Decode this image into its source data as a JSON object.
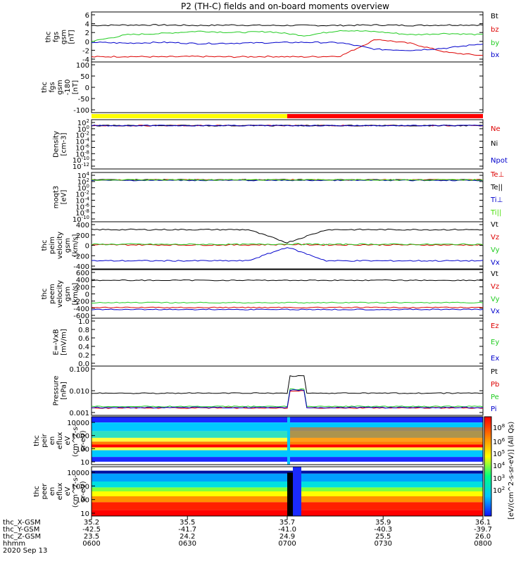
{
  "title": "P2 (TH-C) fields and on-board moments overview",
  "colors": {
    "black": "#000000",
    "red": "#dd0000",
    "green": "#22cc22",
    "blue": "#0000cc",
    "lime": "#44dd00",
    "yellow": "#ffff00"
  },
  "chart_data": [
    {
      "type": "line",
      "panel": "fgs",
      "ylabel": [
        "thc",
        "fgs",
        "gsm",
        "[nT]"
      ],
      "ylim": [
        -4,
        6
      ],
      "yticks": [
        "6",
        "4",
        "2",
        "0",
        "-2",
        "-4"
      ],
      "x": [
        0,
        0.1,
        0.2,
        0.3,
        0.4,
        0.5,
        0.6,
        0.7,
        0.75,
        0.8,
        0.9,
        1.0
      ],
      "series": [
        {
          "name": "Bt",
          "color": "#000000",
          "values": [
            3.6,
            3.7,
            3.7,
            3.6,
            3.7,
            3.6,
            3.6,
            3.6,
            3.7,
            3.6,
            3.7,
            3.7
          ]
        },
        {
          "name": "bz",
          "color": "#dd0000",
          "values": [
            -3.5,
            -3.4,
            -3.5,
            -3.4,
            -3.5,
            -3.4,
            -3.5,
            -3.3,
            0.5,
            -0.5,
            -2.5,
            -3.2
          ]
        },
        {
          "name": "by",
          "color": "#22cc22",
          "values": [
            0,
            1.5,
            1.8,
            2.3,
            2.0,
            2.2,
            1.3,
            2.5,
            2.2,
            1.5,
            1.8,
            1.5
          ]
        },
        {
          "name": "bx",
          "color": "#0000cc",
          "values": [
            -0.2,
            -0.4,
            -0.2,
            -0.5,
            -0.4,
            -0.3,
            -0.2,
            -0.3,
            -1.8,
            -2.0,
            -1.5,
            -0.5
          ]
        }
      ]
    },
    {
      "type": "line",
      "panel": "fgs_lo",
      "ylabel": [
        "thc",
        "fgs",
        "gsm",
        "-180",
        "[nT]"
      ],
      "ylim": [
        -130,
        100
      ],
      "yticks": [
        "100",
        "50",
        "0",
        "-50",
        "-100"
      ],
      "series": []
    },
    {
      "type": "bar",
      "panel": "mode-bar",
      "segments": [
        {
          "from": 0,
          "to": 0.5,
          "color": "#ffff00"
        },
        {
          "from": 0.5,
          "to": 1.0,
          "color": "#ff0000"
        }
      ]
    },
    {
      "type": "line",
      "panel": "density",
      "ylabel": [
        "Density",
        "[cm-3]"
      ],
      "yticks": [
        "10^2",
        "10^0",
        "10^-2",
        "10^-4",
        "10^-6",
        "10^-8",
        "10^-10",
        "10^-12"
      ],
      "series": [
        {
          "name": "Ne",
          "color": "#dd0000"
        },
        {
          "name": "Ni",
          "color": "#000000"
        },
        {
          "name": "Npot",
          "color": "#0000cc"
        }
      ]
    },
    {
      "type": "line",
      "panel": "temperature",
      "ylabel": [
        "moqt3",
        "[eV]"
      ],
      "yticks": [
        "10^4",
        "10^2",
        "10^0",
        "10^-2",
        "10^-4",
        "10^-6",
        "10^-8",
        "10^-10"
      ],
      "series": [
        {
          "name": "Te⊥",
          "color": "#dd0000"
        },
        {
          "name": "Te||",
          "color": "#000000"
        },
        {
          "name": "Ti⊥",
          "color": "#0000cc"
        },
        {
          "name": "Ti||",
          "color": "#44dd00"
        }
      ]
    },
    {
      "type": "line",
      "panel": "peim",
      "ylabel": [
        "thc",
        "peim",
        "velocity",
        "gsm",
        "[km/s]"
      ],
      "ylim": [
        -450,
        450
      ],
      "yticks": [
        "400",
        "200",
        "0",
        "-200",
        "-400"
      ],
      "series": [
        {
          "name": "Vt",
          "color": "#000000",
          "values": [
            340,
            340,
            340,
            340,
            340,
            60,
            340,
            340,
            340,
            340,
            340
          ]
        },
        {
          "name": "Vz",
          "color": "#dd0000",
          "values": [
            10,
            12,
            10,
            8,
            10,
            20,
            10,
            12,
            10,
            8,
            10
          ]
        },
        {
          "name": "Vy",
          "color": "#22cc22",
          "values": [
            20,
            25,
            20,
            22,
            20,
            30,
            20,
            25,
            22,
            20,
            25
          ]
        },
        {
          "name": "Vx",
          "color": "#0000cc",
          "values": [
            -335,
            -335,
            -335,
            -335,
            -335,
            -40,
            -335,
            -335,
            -335,
            -335,
            -335
          ]
        }
      ]
    },
    {
      "type": "line",
      "panel": "peem",
      "ylabel": [
        "thc",
        "peem",
        "velocity",
        "gsm",
        "[km/s]"
      ],
      "ylim": [
        -650,
        650
      ],
      "yticks": [
        "600",
        "400",
        "200",
        "0",
        "-200",
        "-400",
        "-600"
      ],
      "series": [
        {
          "name": "Vt",
          "color": "#000000"
        },
        {
          "name": "Vz",
          "color": "#dd0000"
        },
        {
          "name": "Vy",
          "color": "#22cc22"
        },
        {
          "name": "Vx",
          "color": "#0000cc"
        }
      ]
    },
    {
      "type": "line",
      "panel": "efield",
      "ylabel": [
        "E=-VxB",
        "[mV/m]"
      ],
      "ylim": [
        0,
        1
      ],
      "yticks": [
        "1.0",
        "0.8",
        "0.6",
        "0.4",
        "0.2",
        "0.0"
      ],
      "series": [
        {
          "name": "Ez",
          "color": "#dd0000"
        },
        {
          "name": "Ey",
          "color": "#22cc22"
        },
        {
          "name": "Ex",
          "color": "#0000cc"
        }
      ]
    },
    {
      "type": "line",
      "panel": "pressure",
      "ylabel": [
        "Pressure",
        "[nPa]"
      ],
      "yticks": [
        "0.100",
        "0.010",
        "0.001"
      ],
      "series": [
        {
          "name": "Pt",
          "color": "#000000"
        },
        {
          "name": "Pb",
          "color": "#dd0000"
        },
        {
          "name": "Pe",
          "color": "#22cc22"
        },
        {
          "name": "Pi",
          "color": "#0000cc"
        }
      ]
    },
    {
      "type": "heatmap",
      "panel": "peir",
      "ylabel": [
        "thc",
        "peir",
        "en",
        "eflux",
        "eV",
        "(cm^2-s-",
        "sr-eV)"
      ],
      "yticks": [
        "10000",
        "1000",
        "100",
        "10"
      ]
    },
    {
      "type": "heatmap",
      "panel": "peer",
      "ylabel": [
        "thc",
        "peer",
        "en",
        "eflux",
        "eV",
        "(cm^2-s-",
        "sr-eV)"
      ],
      "yticks": [
        "10000",
        "1000",
        "100",
        "10"
      ]
    },
    {
      "type": "colorbar",
      "ticks": [
        "10^8",
        "10^6",
        "10^5",
        "10^4",
        "10^3",
        "10^2"
      ],
      "label": "[eV/(cm^2-s-sr-eV)] (All Qs)"
    }
  ],
  "xaxis": {
    "rows": [
      {
        "label": "thc_X-GSM",
        "values": [
          "35.2",
          "35.5",
          "35.7",
          "35.9",
          "36.1"
        ]
      },
      {
        "label": "thc_Y-GSM",
        "values": [
          "-42.5",
          "-41.7",
          "-41.0",
          "-40.3",
          "-39.7"
        ]
      },
      {
        "label": "thc_Z-GSM",
        "values": [
          "23.5",
          "24.2",
          "24.9",
          "25.5",
          "26.0"
        ]
      },
      {
        "label": "hhmm",
        "values": [
          "0600",
          "0630",
          "0700",
          "0730",
          "0800"
        ]
      }
    ],
    "date": "2020 Sep 13"
  }
}
